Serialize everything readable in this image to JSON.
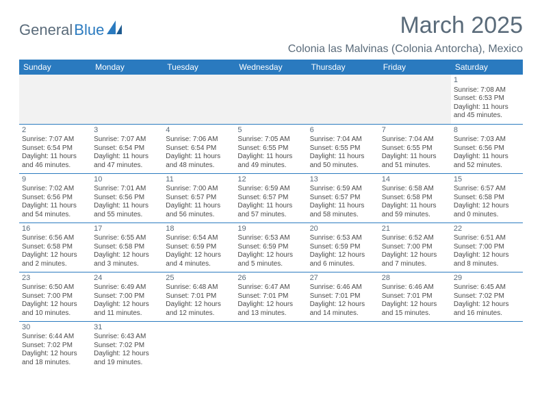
{
  "logo": {
    "text1": "General",
    "text2": "Blue"
  },
  "title": "March 2025",
  "location": "Colonia las Malvinas (Colonia Antorcha), Mexico",
  "colors": {
    "header_bg": "#2a7abf",
    "header_text": "#ffffff",
    "border": "#2a7abf",
    "text": "#4a4a4a",
    "muted": "#5a6b7a",
    "empty_bg": "#f2f2f2"
  },
  "dayHeaders": [
    "Sunday",
    "Monday",
    "Tuesday",
    "Wednesday",
    "Thursday",
    "Friday",
    "Saturday"
  ],
  "weeks": [
    [
      {
        "empty": true
      },
      {
        "empty": true
      },
      {
        "empty": true
      },
      {
        "empty": true
      },
      {
        "empty": true
      },
      {
        "empty": true
      },
      {
        "day": "1",
        "sunrise": "Sunrise: 7:08 AM",
        "sunset": "Sunset: 6:53 PM",
        "daylight": "Daylight: 11 hours and 45 minutes."
      }
    ],
    [
      {
        "day": "2",
        "sunrise": "Sunrise: 7:07 AM",
        "sunset": "Sunset: 6:54 PM",
        "daylight": "Daylight: 11 hours and 46 minutes."
      },
      {
        "day": "3",
        "sunrise": "Sunrise: 7:07 AM",
        "sunset": "Sunset: 6:54 PM",
        "daylight": "Daylight: 11 hours and 47 minutes."
      },
      {
        "day": "4",
        "sunrise": "Sunrise: 7:06 AM",
        "sunset": "Sunset: 6:54 PM",
        "daylight": "Daylight: 11 hours and 48 minutes."
      },
      {
        "day": "5",
        "sunrise": "Sunrise: 7:05 AM",
        "sunset": "Sunset: 6:55 PM",
        "daylight": "Daylight: 11 hours and 49 minutes."
      },
      {
        "day": "6",
        "sunrise": "Sunrise: 7:04 AM",
        "sunset": "Sunset: 6:55 PM",
        "daylight": "Daylight: 11 hours and 50 minutes."
      },
      {
        "day": "7",
        "sunrise": "Sunrise: 7:04 AM",
        "sunset": "Sunset: 6:55 PM",
        "daylight": "Daylight: 11 hours and 51 minutes."
      },
      {
        "day": "8",
        "sunrise": "Sunrise: 7:03 AM",
        "sunset": "Sunset: 6:56 PM",
        "daylight": "Daylight: 11 hours and 52 minutes."
      }
    ],
    [
      {
        "day": "9",
        "sunrise": "Sunrise: 7:02 AM",
        "sunset": "Sunset: 6:56 PM",
        "daylight": "Daylight: 11 hours and 54 minutes."
      },
      {
        "day": "10",
        "sunrise": "Sunrise: 7:01 AM",
        "sunset": "Sunset: 6:56 PM",
        "daylight": "Daylight: 11 hours and 55 minutes."
      },
      {
        "day": "11",
        "sunrise": "Sunrise: 7:00 AM",
        "sunset": "Sunset: 6:57 PM",
        "daylight": "Daylight: 11 hours and 56 minutes."
      },
      {
        "day": "12",
        "sunrise": "Sunrise: 6:59 AM",
        "sunset": "Sunset: 6:57 PM",
        "daylight": "Daylight: 11 hours and 57 minutes."
      },
      {
        "day": "13",
        "sunrise": "Sunrise: 6:59 AM",
        "sunset": "Sunset: 6:57 PM",
        "daylight": "Daylight: 11 hours and 58 minutes."
      },
      {
        "day": "14",
        "sunrise": "Sunrise: 6:58 AM",
        "sunset": "Sunset: 6:58 PM",
        "daylight": "Daylight: 11 hours and 59 minutes."
      },
      {
        "day": "15",
        "sunrise": "Sunrise: 6:57 AM",
        "sunset": "Sunset: 6:58 PM",
        "daylight": "Daylight: 12 hours and 0 minutes."
      }
    ],
    [
      {
        "day": "16",
        "sunrise": "Sunrise: 6:56 AM",
        "sunset": "Sunset: 6:58 PM",
        "daylight": "Daylight: 12 hours and 2 minutes."
      },
      {
        "day": "17",
        "sunrise": "Sunrise: 6:55 AM",
        "sunset": "Sunset: 6:58 PM",
        "daylight": "Daylight: 12 hours and 3 minutes."
      },
      {
        "day": "18",
        "sunrise": "Sunrise: 6:54 AM",
        "sunset": "Sunset: 6:59 PM",
        "daylight": "Daylight: 12 hours and 4 minutes."
      },
      {
        "day": "19",
        "sunrise": "Sunrise: 6:53 AM",
        "sunset": "Sunset: 6:59 PM",
        "daylight": "Daylight: 12 hours and 5 minutes."
      },
      {
        "day": "20",
        "sunrise": "Sunrise: 6:53 AM",
        "sunset": "Sunset: 6:59 PM",
        "daylight": "Daylight: 12 hours and 6 minutes."
      },
      {
        "day": "21",
        "sunrise": "Sunrise: 6:52 AM",
        "sunset": "Sunset: 7:00 PM",
        "daylight": "Daylight: 12 hours and 7 minutes."
      },
      {
        "day": "22",
        "sunrise": "Sunrise: 6:51 AM",
        "sunset": "Sunset: 7:00 PM",
        "daylight": "Daylight: 12 hours and 8 minutes."
      }
    ],
    [
      {
        "day": "23",
        "sunrise": "Sunrise: 6:50 AM",
        "sunset": "Sunset: 7:00 PM",
        "daylight": "Daylight: 12 hours and 10 minutes."
      },
      {
        "day": "24",
        "sunrise": "Sunrise: 6:49 AM",
        "sunset": "Sunset: 7:00 PM",
        "daylight": "Daylight: 12 hours and 11 minutes."
      },
      {
        "day": "25",
        "sunrise": "Sunrise: 6:48 AM",
        "sunset": "Sunset: 7:01 PM",
        "daylight": "Daylight: 12 hours and 12 minutes."
      },
      {
        "day": "26",
        "sunrise": "Sunrise: 6:47 AM",
        "sunset": "Sunset: 7:01 PM",
        "daylight": "Daylight: 12 hours and 13 minutes."
      },
      {
        "day": "27",
        "sunrise": "Sunrise: 6:46 AM",
        "sunset": "Sunset: 7:01 PM",
        "daylight": "Daylight: 12 hours and 14 minutes."
      },
      {
        "day": "28",
        "sunrise": "Sunrise: 6:46 AM",
        "sunset": "Sunset: 7:01 PM",
        "daylight": "Daylight: 12 hours and 15 minutes."
      },
      {
        "day": "29",
        "sunrise": "Sunrise: 6:45 AM",
        "sunset": "Sunset: 7:02 PM",
        "daylight": "Daylight: 12 hours and 16 minutes."
      }
    ],
    [
      {
        "day": "30",
        "sunrise": "Sunrise: 6:44 AM",
        "sunset": "Sunset: 7:02 PM",
        "daylight": "Daylight: 12 hours and 18 minutes."
      },
      {
        "day": "31",
        "sunrise": "Sunrise: 6:43 AM",
        "sunset": "Sunset: 7:02 PM",
        "daylight": "Daylight: 12 hours and 19 minutes."
      },
      {
        "empty": true,
        "trailing": true
      },
      {
        "empty": true,
        "trailing": true
      },
      {
        "empty": true,
        "trailing": true
      },
      {
        "empty": true,
        "trailing": true
      },
      {
        "empty": true,
        "trailing": true
      }
    ]
  ]
}
